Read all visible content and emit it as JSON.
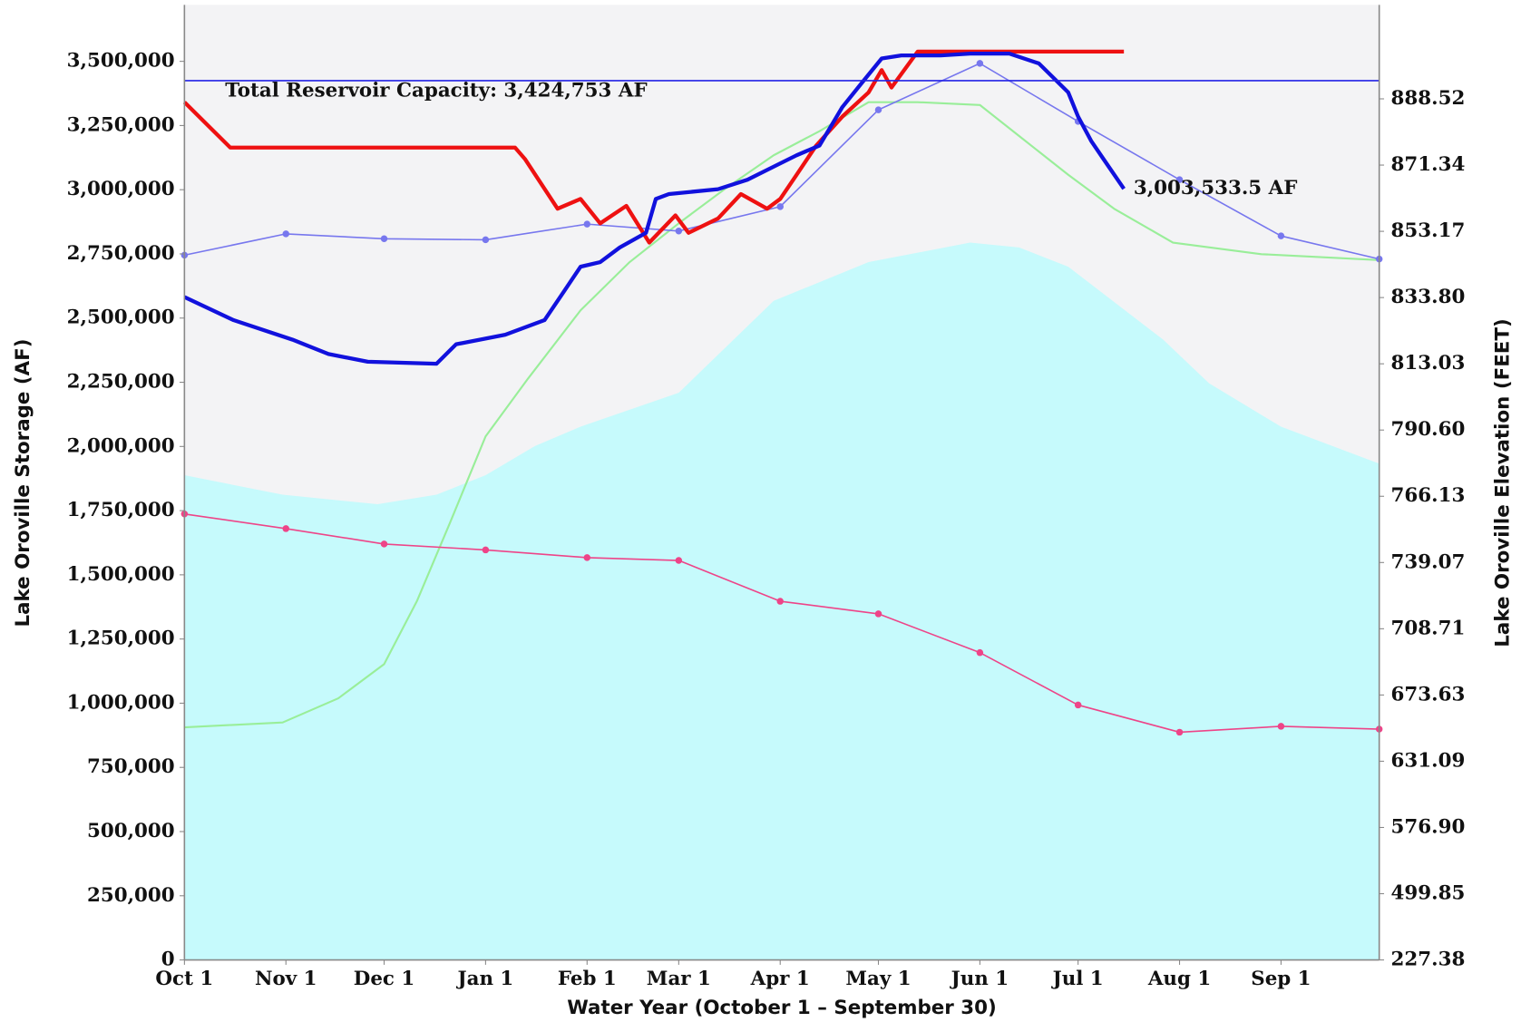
{
  "chart_data": {
    "type": "line",
    "x_label": "Water Year (October 1 – September 30)",
    "y_label": "Lake Oroville Storage (AF)",
    "y2_label": "Lake Oroville Elevation (FEET)",
    "xlim": [
      0,
      365
    ],
    "xticks": [
      {
        "value": 0,
        "label": "Oct 1"
      },
      {
        "value": 31,
        "label": "Nov 1"
      },
      {
        "value": 61,
        "label": "Dec 1"
      },
      {
        "value": 92,
        "label": "Jan 1"
      },
      {
        "value": 123,
        "label": "Feb 1"
      },
      {
        "value": 151,
        "label": "Mar 1"
      },
      {
        "value": 182,
        "label": "Apr 1"
      },
      {
        "value": 212,
        "label": "May 1"
      },
      {
        "value": 243,
        "label": "Jun 1"
      },
      {
        "value": 273,
        "label": "Jul 1"
      },
      {
        "value": 304,
        "label": "Aug 1"
      },
      {
        "value": 335,
        "label": "Sep 1"
      }
    ],
    "ylim": [
      0,
      3720000
    ],
    "yticks": [
      0,
      {
        "value": 250000,
        "label": "250,000"
      },
      {
        "value": 500000,
        "label": "500,000"
      },
      {
        "value": 750000,
        "label": "750,000"
      },
      {
        "value": 1000000,
        "label": "1,000,000"
      },
      {
        "value": 1250000,
        "label": "1,250,000"
      },
      {
        "value": 1500000,
        "label": "1,500,000"
      },
      {
        "value": 1750000,
        "label": "1,750,000"
      },
      {
        "value": 2000000,
        "label": "2,000,000"
      },
      {
        "value": 2250000,
        "label": "2,250,000"
      },
      {
        "value": 2500000,
        "label": "2,500,000"
      },
      {
        "value": 2750000,
        "label": "2,750,000"
      },
      {
        "value": 3000000,
        "label": "3,000,000"
      },
      {
        "value": 3250000,
        "label": "3,250,000"
      },
      {
        "value": 3500000,
        "label": "3,500,000"
      }
    ],
    "y2lim": [
      227.38,
      912.9
    ],
    "y2scale": "evenly-spaced-ticks",
    "y2ticks": [
      227.38,
      499.85,
      {
        "value": 576.9,
        "label": "576.90"
      },
      631.09,
      673.63,
      708.71,
      739.07,
      766.13,
      {
        "value": 790.6,
        "label": "790.60"
      },
      813.03,
      {
        "value": 833.8,
        "label": "833.80"
      },
      853.17,
      871.34,
      888.52
    ],
    "grid": false,
    "reference_line": {
      "value": 3424753,
      "label": "Total Reservoir Capacity: 3,424,753 AF",
      "color": "#2222e6"
    },
    "series": [
      {
        "kind": "area",
        "color": "#c6fafc",
        "x": [
          0,
          30,
          59,
          77,
          92,
          107,
          121,
          151,
          180,
          209,
          240,
          255,
          270,
          299,
          313,
          335,
          365
        ],
        "values": [
          1888000,
          1812000,
          1775000,
          1812000,
          1888000,
          2001000,
          2077000,
          2209000,
          2567000,
          2718000,
          2794000,
          2775000,
          2700000,
          2416000,
          2246000,
          2077000,
          1933000
        ]
      },
      {
        "kind": "line",
        "color": "#99ee99",
        "width": 2,
        "x": [
          0,
          30,
          47,
          61,
          71,
          81,
          92,
          105,
          121,
          136,
          151,
          165,
          180,
          194,
          209,
          224,
          243,
          255,
          270,
          284,
          302,
          329,
          365
        ],
        "values": [
          906000,
          925000,
          1019000,
          1152000,
          1397000,
          1699000,
          2039000,
          2265000,
          2530000,
          2718000,
          2869000,
          3002000,
          3134000,
          3228000,
          3341000,
          3341000,
          3330000,
          3209000,
          3058000,
          2926000,
          2794000,
          2749000,
          2726000
        ]
      },
      {
        "kind": "line",
        "color": "#ee4488",
        "width": 1.5,
        "markers": true,
        "x": [
          0,
          31,
          61,
          92,
          123,
          151,
          182,
          212,
          243,
          273,
          304,
          335,
          365
        ],
        "values": [
          1737000,
          1680000,
          1620000,
          1597000,
          1567000,
          1556000,
          1397000,
          1348000,
          1197000,
          993000,
          887000,
          910000,
          899000
        ]
      },
      {
        "kind": "line",
        "color": "#7777ee",
        "width": 1.5,
        "markers": true,
        "x": [
          0,
          31,
          61,
          92,
          123,
          151,
          182,
          212,
          243,
          273,
          304,
          335,
          365
        ],
        "values": [
          2745000,
          2828000,
          2809000,
          2805000,
          2866000,
          2839000,
          2934000,
          3311000,
          3492000,
          3266000,
          3039000,
          2820000,
          2730000
        ]
      },
      {
        "kind": "line",
        "color": "#ee1111",
        "width": 4,
        "x": [
          0,
          14,
          101,
          104,
          114,
          121,
          127,
          135,
          142,
          150,
          154,
          163,
          170,
          178,
          182,
          187,
          193,
          201,
          209,
          213,
          216,
          224,
          287
        ],
        "values": [
          3341000,
          3164000,
          3164000,
          3120000,
          2926000,
          2964000,
          2869000,
          2937000,
          2794000,
          2900000,
          2832000,
          2888000,
          2983000,
          2926000,
          2964000,
          3058000,
          3172000,
          3285000,
          3379000,
          3466000,
          3398000,
          3538000,
          3538000
        ]
      },
      {
        "kind": "line",
        "color": "#1111dd",
        "width": 4,
        "x": [
          0,
          15,
          33,
          44,
          56,
          77,
          83,
          98,
          110,
          116,
          121,
          127,
          133,
          141,
          144,
          148,
          163,
          172,
          181,
          187,
          194,
          201,
          207,
          213,
          219,
          231,
          240,
          252,
          261,
          270,
          273,
          277,
          281,
          287
        ],
        "values": [
          2582000,
          2492000,
          2416000,
          2360000,
          2330000,
          2322000,
          2398000,
          2435000,
          2492000,
          2605000,
          2700000,
          2718000,
          2775000,
          2832000,
          2964000,
          2983000,
          3002000,
          3039000,
          3096000,
          3134000,
          3172000,
          3322000,
          3417000,
          3511000,
          3523000,
          3523000,
          3530000,
          3530000,
          3492000,
          3379000,
          3285000,
          3190000,
          3115000,
          3003533.5
        ],
        "end_label": "3,003,533.5 AF"
      }
    ]
  }
}
